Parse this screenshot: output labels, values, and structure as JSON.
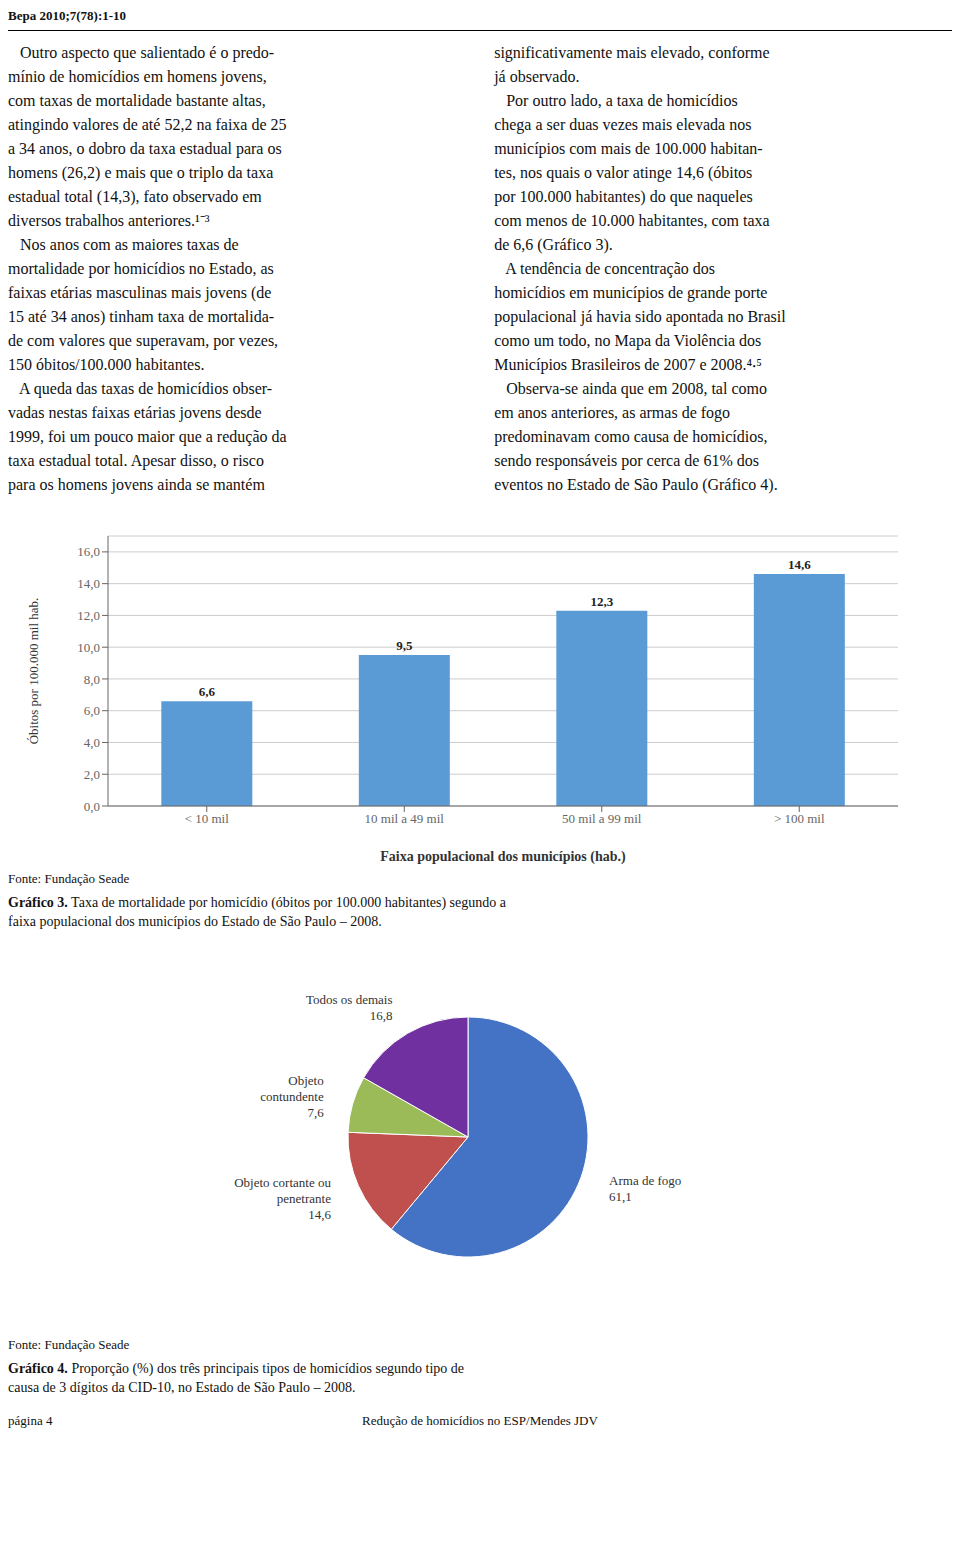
{
  "chart_data": [
    {
      "type": "bar",
      "title": "Gráfico 3. Taxa de mortalidade por homicídio (óbitos por 100.000 habitantes) segundo a\nfaixa populacional dos municípios do Estado de São Paulo – 2008.",
      "annotations": [
        "Bepa 2010;7(78):1-10",
        "   Outro aspecto que salientado é o predo-\nmínio de homicídios em homens jovens,\ncom taxas de mortalidade bastante altas,\natingindo valores de até 52,2 na faixa de 25\na 34 anos, o dobro da taxa estadual para os\nhomens (26,2) e mais que o triplo da taxa\nestadual total (14,3), fato observado em\ndiversos trabalhos anteriores.¹⁻³\n   Nos anos com as maiores taxas de\nmortalidade por homicídios no Estado, as\nfaixas etárias masculinas mais jovens (de\n15 até 34 anos) tinham taxa de mortalida-\nde com valores que superavam, por vezes,\n150 óbitos/100.000 habitantes.\n   A queda das taxas de homicídios obser-\nvadas nestas faixas etárias jovens desde\n1999, foi um pouco maior que a redução da\ntaxa estadual total. Apesar disso, o risco\npara os homens jovens ainda se mantém",
        "significativamente mais elevado, conforme\njá observado.\n   Por outro lado, a taxa de homicídios\nchega a ser duas vezes mais elevada nos\nmunicípios com mais de 100.000 habitan-\ntes, nos quais o valor atinge 14,6 (óbitos\npor 100.000 habitantes) do que naqueles\ncom menos de 10.000 habitantes, com taxa\nde 6,6 (Gráfico 3).\n   A tendência de concentração dos\nhomicídios em municípios de grande porte\npopulacional já havia sido apontada no Brasil\ncomo um todo, no Mapa da Violência dos\nMunicípios Brasileiros de 2007 e 2008.⁴‧⁵\n   Observa-se ainda que em 2008, tal como\nem anos anteriores, as armas de fogo\npredominavam como causa de homicídios,\nsendo responsáveis por cerca de 61% dos\neventos no Estado de São Paulo (Gráfico 4).",
        "Fonte: Fundação Seade"
      ],
      "categories": [
        "< 10 mil",
        "10 mil a 49 mil",
        "50 mil a 99 mil",
        "> 100 mil"
      ],
      "values": [
        6.6,
        9.5,
        12.3,
        14.6
      ],
      "value_labels": [
        "6,6",
        "9,5",
        "12,3",
        "14,6"
      ],
      "data_labels": true,
      "color": "#5B9BD5",
      "xlabel": "Faixa populacional dos municípios (hab.)",
      "ylabel": "Óbitos por 100.000 mil hab.",
      "ylim": [
        0,
        17
      ],
      "yticks": [
        {
          "value": 0,
          "label": "0,0"
        },
        {
          "value": 2,
          "label": "2,0"
        },
        {
          "value": 4,
          "label": "4,0"
        },
        {
          "value": 6,
          "label": "6,0"
        },
        {
          "value": 8,
          "label": "8,0"
        },
        {
          "value": 10,
          "label": "10,0"
        },
        {
          "value": 12,
          "label": "12,0"
        },
        {
          "value": 14,
          "label": "14,0"
        },
        {
          "value": 16,
          "label": "16,0"
        }
      ],
      "grid": true
    },
    {
      "type": "pie",
      "title": "Gráfico 4. Proporção (%) dos três principais tipos de homicídios segundo tipo de\ncausa de 3 dígitos da CID-10, no Estado de São Paulo – 2008.",
      "annotations": [
        "Fonte: Fundação Seade",
        "página 4",
        "Redução de homicídios no ESP/Mendes JDV"
      ],
      "categories": [
        "Arma de fogo",
        "Objeto cortante ou\npenetrante",
        "Objeto\ncontundente",
        "Todos os demais"
      ],
      "values": [
        61.1,
        14.6,
        7.6,
        16.8
      ],
      "value_labels": [
        "61,1",
        "14,6",
        "7,6",
        "16,8"
      ],
      "data_labels": true,
      "colors": [
        "#4472C4",
        "#C0504D",
        "#9BBB59",
        "#7030A0"
      ]
    }
  ]
}
